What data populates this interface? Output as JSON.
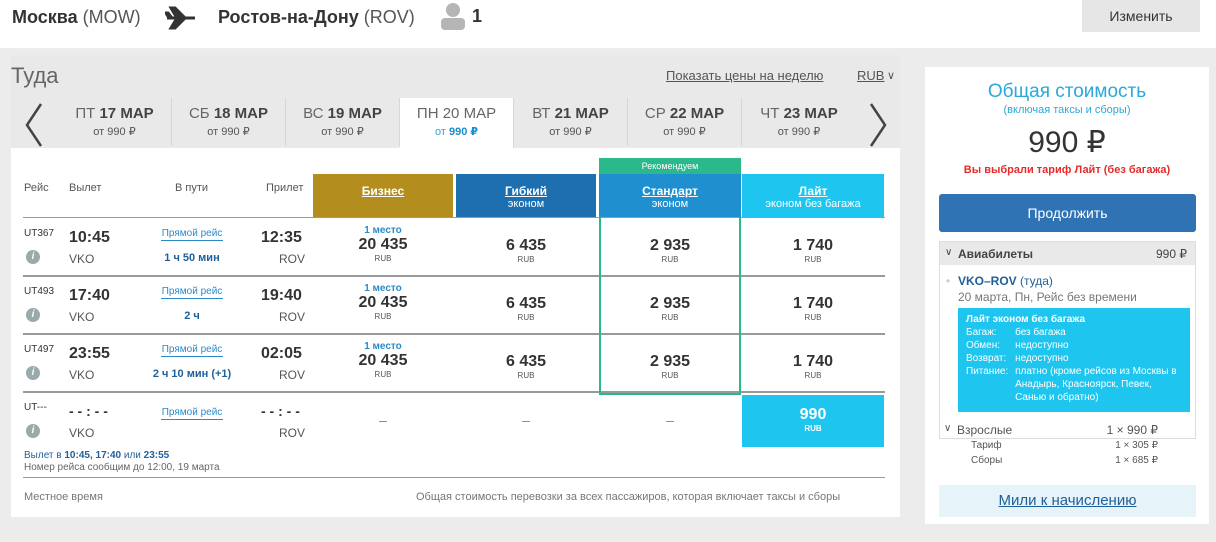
{
  "header": {
    "origin_city": "Москва",
    "origin_code": "(MOW)",
    "dest_city": "Ростов-на-Дону",
    "dest_code": "(ROV)",
    "passengers": "1",
    "change_label": "Изменить",
    "icons": [
      "plane-icon",
      "person-icon"
    ]
  },
  "panel": {
    "title": "Туда",
    "week_link": "Показать цены на неделю",
    "currency": "RUB"
  },
  "dates": [
    {
      "day": "ПТ",
      "date": "17 МАР",
      "price_prefix": "от",
      "price": "990 ₽"
    },
    {
      "day": "СБ",
      "date": "18 МАР",
      "price_prefix": "от",
      "price": "990 ₽"
    },
    {
      "day": "ВС",
      "date": "19 МАР",
      "price_prefix": "от",
      "price": "990 ₽"
    },
    {
      "day": "ПН",
      "date": "20 МАР",
      "price_prefix": "от",
      "price": "990 ₽"
    },
    {
      "day": "ВТ",
      "date": "21 МАР",
      "price_prefix": "от",
      "price": "990 ₽"
    },
    {
      "day": "СР",
      "date": "22 МАР",
      "price_prefix": "от",
      "price": "990 ₽"
    },
    {
      "day": "ЧТ",
      "date": "23 МАР",
      "price_prefix": "от",
      "price": "990 ₽"
    }
  ],
  "table": {
    "headers": {
      "flight": "Рейс",
      "dep": "Вылет",
      "travel": "В пути",
      "arr": "Прилет"
    },
    "recommend": "Рекомендуем",
    "fares": [
      {
        "name": "Бизнес",
        "sub": "",
        "color": "#b38e1e"
      },
      {
        "name": "Гибкий",
        "sub": "эконом",
        "color": "#1e6fb0"
      },
      {
        "name": "Стандарт",
        "sub": "эконом",
        "color": "#1f8fd0"
      },
      {
        "name": "Лайт",
        "sub": "эконом без багажа",
        "color": "#1ec5ef"
      }
    ],
    "rows": [
      {
        "flight": "UT367",
        "dep_time": "10:45",
        "dep_ap": "VKO",
        "type": "Прямой рейс",
        "dur": "1 ч 50 мин",
        "arr_time": "12:35",
        "arr_ap": "ROV",
        "biz_seat": "1 место",
        "biz": "20 435",
        "flex": "6 435",
        "std": "2 935",
        "lite": "1 740"
      },
      {
        "flight": "UT493",
        "dep_time": "17:40",
        "dep_ap": "VKO",
        "type": "Прямой рейс",
        "dur": "2 ч",
        "arr_time": "19:40",
        "arr_ap": "ROV",
        "biz_seat": "1 место",
        "biz": "20 435",
        "flex": "6 435",
        "std": "2 935",
        "lite": "1 740"
      },
      {
        "flight": "UT497",
        "dep_time": "23:55",
        "dep_ap": "VKO",
        "type": "Прямой рейс",
        "dur": "2 ч 10 мин (+1)",
        "arr_time": "02:05",
        "arr_ap": "ROV",
        "biz_seat": "1 место",
        "biz": "20 435",
        "flex": "6 435",
        "std": "2 935",
        "lite": "1 740"
      }
    ],
    "unknown": {
      "flight": "UT---",
      "dep_time": "- - : - -",
      "dep_ap": "VKO",
      "type": "Прямой рейс",
      "arr_time": "- - : - -",
      "arr_ap": "ROV",
      "dash": "–",
      "lite": "990"
    },
    "cur": "RUB",
    "depart_note_prefix": "Вылет в",
    "depart_times": "10:45, 17:40",
    "depart_or": "или",
    "depart_last": "23:55",
    "number_note": "Номер рейса сообщим до 12:00, 19 марта",
    "footer_left": "Местное время",
    "footer_right": "Общая стоимость перевозки за всех пассажиров, которая включает таксы и сборы"
  },
  "summary": {
    "title": "Общая стоимость",
    "sub": "(включая таксы и сборы)",
    "price": "990 ₽",
    "note": "Вы выбрали тариф Лайт (без багажа)",
    "continue": "Продолжить",
    "tickets_label": "Авиабилеты",
    "tickets_price": "990 ₽",
    "route": "VKO–ROV",
    "route_dir": "(туда)",
    "route_sub": "20 марта, Пн, Рейс без времени",
    "tariff_title": "Лайт эконом без багажа",
    "tariff_rows": [
      {
        "k": "Багаж:",
        "v": "без багажа"
      },
      {
        "k": "Обмен:",
        "v": "недоступно"
      },
      {
        "k": "Возврат:",
        "v": "недоступно"
      },
      {
        "k": "Питание:",
        "v": "платно (кроме рейсов из Москвы в Анадырь, Красноярск, Певек, Санью и обратно)"
      }
    ],
    "adults_label": "Взрослые",
    "adults_value": "1 × 990 ₽",
    "tariff_label": "Тариф",
    "tariff_value": "1 × 305 ₽",
    "fees_label": "Сборы",
    "fees_value": "1 × 685 ₽",
    "miles": "Мили к начислению"
  }
}
